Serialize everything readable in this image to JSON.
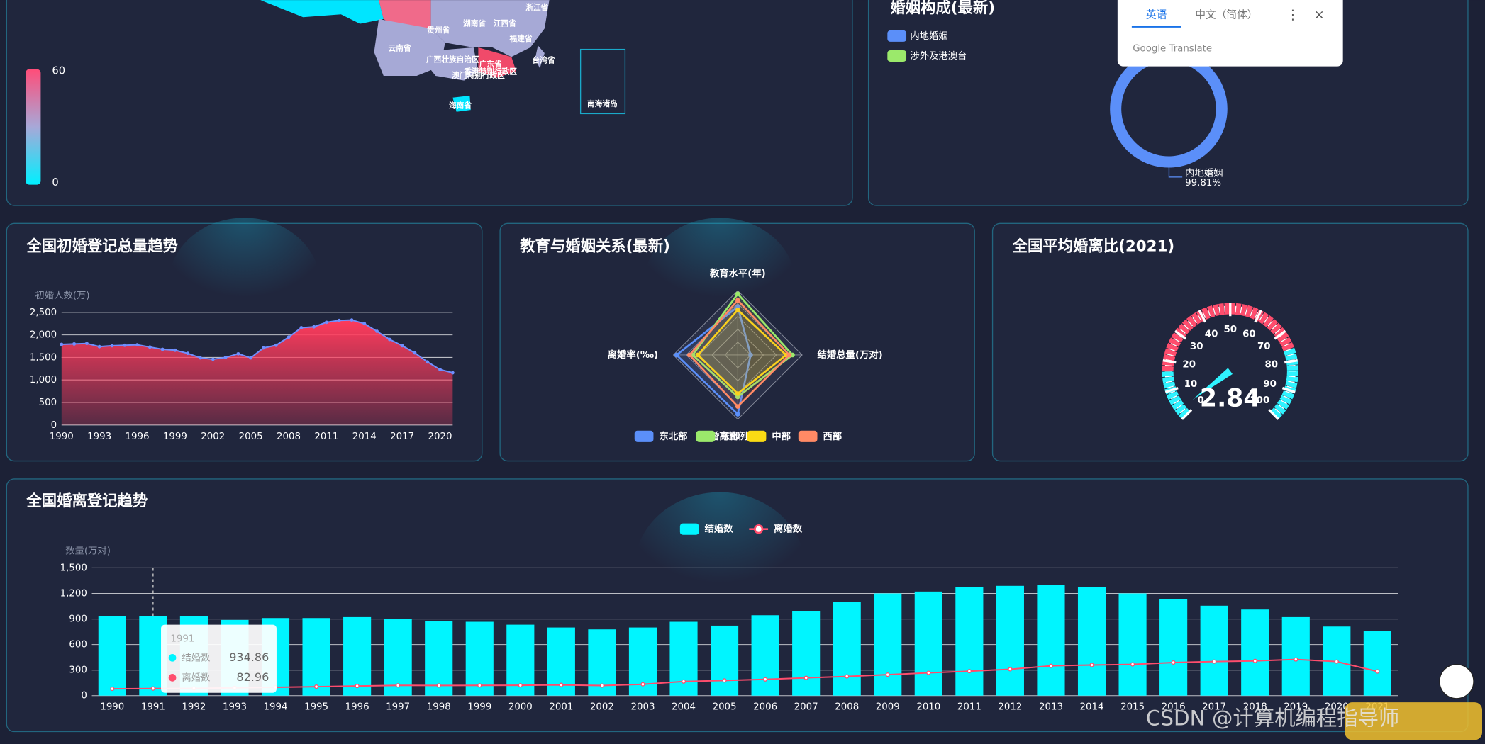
{
  "map": {
    "visual_map": {
      "max": 60,
      "min": 0
    },
    "labels": [
      "浙江省",
      "湖南省",
      "江西省",
      "贵州省",
      "福建省",
      "云南省",
      "台湾省",
      "广西壮族自治区",
      "广东省",
      "香港特别行政区",
      "澳门特别行政区",
      "海南省",
      "南海诸岛"
    ]
  },
  "translate_popup": {
    "tabs": [
      "英语",
      "中文（简体）"
    ],
    "footer": "Google Translate"
  },
  "chart_data": [
    {
      "type": "pie",
      "title": "婚姻构成(最新)",
      "categories": [
        "内地婚姻",
        "涉外及港澳台"
      ],
      "values": [
        99.81,
        0.19
      ],
      "value_labels": [
        "99.81%",
        null
      ],
      "colors": [
        "#5b8ff9",
        "#9be96b"
      ]
    },
    {
      "type": "area",
      "title": "全国初婚登记总量趋势",
      "y_label": "初婚人数(万)",
      "categories": [
        "1990",
        null,
        null,
        "1993",
        null,
        null,
        "1996",
        null,
        null,
        "1999",
        null,
        null,
        "2002",
        null,
        null,
        "2005",
        null,
        null,
        "2008",
        null,
        null,
        "2011",
        null,
        null,
        "2014",
        null,
        null,
        "2017",
        null,
        null,
        "2020",
        null
      ],
      "values": [
        1790,
        1800,
        1810,
        1740,
        1760,
        1770,
        1780,
        1730,
        1680,
        1660,
        1590,
        1490,
        1460,
        1500,
        1580,
        1490,
        1710,
        1770,
        1950,
        2160,
        2180,
        2280,
        2320,
        2330,
        2250,
        2080,
        1900,
        1760,
        1600,
        1400,
        1230,
        1160
      ],
      "color": "#6f8fff",
      "ylim": [
        0,
        2500
      ],
      "yticks": [
        0,
        500,
        {
          "value": 1000,
          "label": "1,000"
        },
        {
          "value": 1500,
          "label": "1,500"
        },
        {
          "value": 2000,
          "label": "2,000"
        },
        {
          "value": 2500,
          "label": "2,500"
        }
      ],
      "grid": true
    },
    {
      "type": "radar",
      "title": "教育与婚姻关系(最新)",
      "indicators": [
        "教育水平(年)",
        "结婚总量(万对)",
        "婚离比例(%)",
        "离婚率(‰)"
      ],
      "rlim": [
        0,
        100
      ],
      "series": [
        {
          "name": "东北部",
          "color": "#5b8ff9",
          "values": [
            75,
            20,
            92,
            95
          ]
        },
        {
          "name": "东部",
          "color": "#9be96b",
          "values": [
            95,
            85,
            65,
            70
          ]
        },
        {
          "name": "中部",
          "color": "#fadb14",
          "values": [
            70,
            75,
            60,
            62
          ]
        },
        {
          "name": "西部",
          "color": "#ff8a65",
          "values": [
            85,
            80,
            80,
            75
          ]
        }
      ]
    },
    {
      "type": "gauge",
      "title": "全国平均婚离比(2021)",
      "value": 2.84,
      "ylim": [
        0,
        100
      ],
      "yticks": [
        0,
        10,
        20,
        30,
        40,
        50,
        60,
        70,
        80,
        90,
        100
      ]
    },
    {
      "type": "bar-line",
      "title": "全国婚离登记趋势",
      "y_label": "数量(万对)",
      "categories": [
        "1990",
        "1991",
        "1992",
        "1993",
        "1994",
        "1995",
        "1996",
        "1997",
        "1998",
        "1999",
        "2000",
        "2001",
        "2002",
        "2003",
        "2004",
        "2005",
        "2006",
        "2007",
        "2008",
        "2009",
        "2010",
        "2011",
        "2012",
        "2013",
        "2014",
        "2015",
        "2016",
        "2017",
        "2018",
        "2019",
        "2020",
        "2021"
      ],
      "series": [
        {
          "name": "结婚数",
          "type": "bar",
          "color": "#00f5ff",
          "values": [
            933,
            934.86,
            933,
            889,
            911,
            911,
            922,
            900,
            878,
            867,
            833,
            800,
            778,
            800,
            867,
            822,
            944,
            989,
            1100,
            1200,
            1222,
            1278,
            1289,
            1300,
            1278,
            1200,
            1133,
            1056,
            1011,
            922,
            811,
            756
          ]
        },
        {
          "name": "离婚数",
          "type": "line",
          "color": "#ff4d6d",
          "values": [
            80,
            82.96,
            85,
            91,
            98,
            105,
            113,
            120,
            119,
            120,
            121,
            126,
            118,
            133,
            166,
            178,
            191,
            209,
            226,
            246,
            268,
            287,
            310,
            350,
            360,
            367,
            389,
            400,
            408,
            425,
            400,
            284
          ]
        }
      ],
      "ylim": [
        0,
        1500
      ],
      "yticks": [
        0,
        300,
        600,
        900,
        {
          "value": 1200,
          "label": "1,200"
        },
        {
          "value": 1500,
          "label": "1,500"
        }
      ],
      "grid": true
    }
  ],
  "watermark": "CSDN @计算机编程指导师"
}
